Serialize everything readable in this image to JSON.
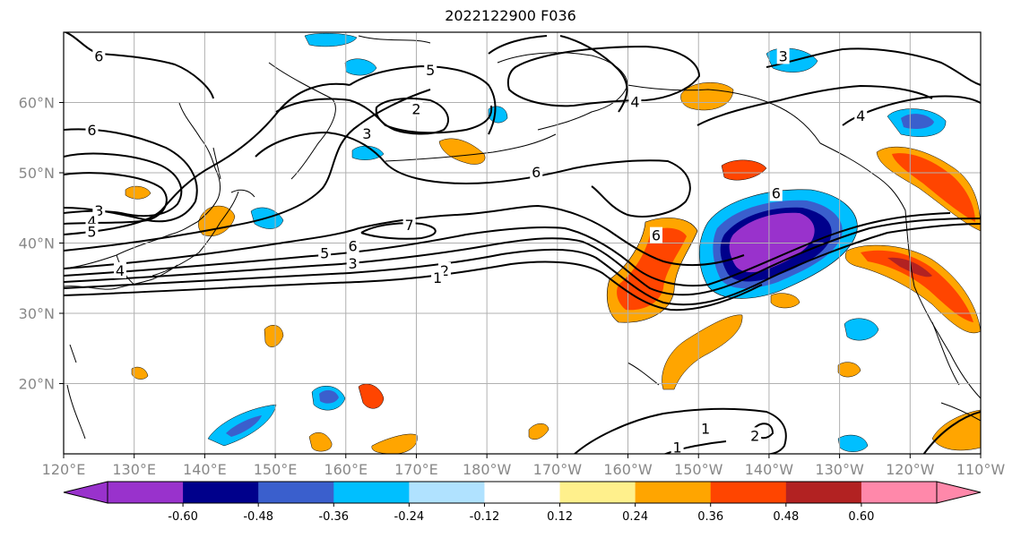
{
  "title": "2022122900 F036",
  "map": {
    "lon_range": [
      120,
      250
    ],
    "lat_range": [
      10,
      70
    ],
    "lon_ticks": [
      "120°E",
      "130°E",
      "140°E",
      "150°E",
      "160°E",
      "170°E",
      "180°W",
      "170°W",
      "160°W",
      "150°W",
      "140°W",
      "130°W",
      "120°W",
      "110°W"
    ],
    "lat_ticks": [
      {
        "lat": 20,
        "label": "20°N"
      },
      {
        "lat": 30,
        "label": "30°N"
      },
      {
        "lat": 40,
        "label": "40°N"
      },
      {
        "lat": 50,
        "label": "50°N"
      },
      {
        "lat": 60,
        "label": "60°N"
      }
    ],
    "grid": true
  },
  "colorbar": {
    "colors": [
      "#9932cc",
      "#00008b",
      "#3a5fcd",
      "#00bfff",
      "#b0e2ff",
      "#ffffff",
      "#fff08c",
      "#ffa500",
      "#ff4500",
      "#b22222",
      "#ff88aa"
    ],
    "tick_labels": [
      "-0.60",
      "-0.48",
      "-0.36",
      "-0.24",
      "-0.12",
      "0.12",
      "0.24",
      "0.36",
      "0.48",
      "0.60"
    ],
    "extend": "both"
  },
  "contour_labels": [
    {
      "text": "6",
      "lon": 125,
      "lat": 66.5
    },
    {
      "text": "6",
      "lon": 124,
      "lat": 56.0
    },
    {
      "text": "3",
      "lon": 125,
      "lat": 44.5
    },
    {
      "text": "4",
      "lon": 124,
      "lat": 43.0
    },
    {
      "text": "5",
      "lon": 124,
      "lat": 41.5
    },
    {
      "text": "4",
      "lon": 128,
      "lat": 36.0
    },
    {
      "text": "5",
      "lon": 172,
      "lat": 64.5
    },
    {
      "text": "2",
      "lon": 170,
      "lat": 59.0
    },
    {
      "text": "3",
      "lon": 163,
      "lat": 55.5
    },
    {
      "text": "4",
      "lon": 201,
      "lat": 60.0
    },
    {
      "text": "6",
      "lon": 187,
      "lat": 50.0
    },
    {
      "text": "7",
      "lon": 169,
      "lat": 42.5
    },
    {
      "text": "6",
      "lon": 161,
      "lat": 39.5
    },
    {
      "text": "5",
      "lon": 157,
      "lat": 38.5
    },
    {
      "text": "3",
      "lon": 161,
      "lat": 37.0
    },
    {
      "text": "2",
      "lon": 174,
      "lat": 36.0
    },
    {
      "text": "1",
      "lon": 173,
      "lat": 35.0
    },
    {
      "text": "6",
      "lon": 204,
      "lat": 41.0
    },
    {
      "text": "6",
      "lon": 221,
      "lat": 47.0
    },
    {
      "text": "4",
      "lon": 233,
      "lat": 58.0
    },
    {
      "text": "3",
      "lon": 222,
      "lat": 66.5
    },
    {
      "text": "1",
      "lon": 211,
      "lat": 13.5
    },
    {
      "text": "1",
      "lon": 207,
      "lat": 10.8
    },
    {
      "text": "2",
      "lon": 218,
      "lat": 12.5
    }
  ]
}
